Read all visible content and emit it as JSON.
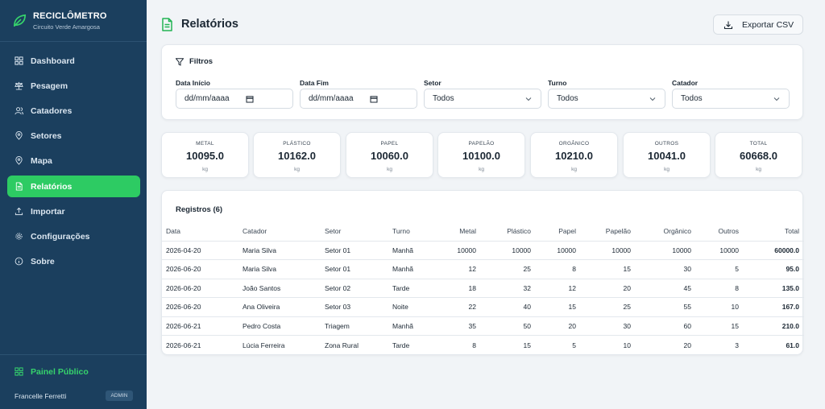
{
  "brand": {
    "name": "RECICLÔMETRO",
    "subtitle": "Circuito Verde Amargosa"
  },
  "sidebar": {
    "items": [
      {
        "label": "Dashboard",
        "icon": "grid-icon"
      },
      {
        "label": "Pesagem",
        "icon": "scale-icon"
      },
      {
        "label": "Catadores",
        "icon": "users-icon"
      },
      {
        "label": "Setores",
        "icon": "map-pin-icon"
      },
      {
        "label": "Mapa",
        "icon": "map-pin-icon"
      },
      {
        "label": "Relatórios",
        "icon": "file-text-icon",
        "active": true
      },
      {
        "label": "Importar",
        "icon": "upload-icon"
      },
      {
        "label": "Configurações",
        "icon": "gear-icon"
      },
      {
        "label": "Sobre",
        "icon": "info-icon"
      }
    ],
    "public_panel": "Painel Público",
    "user": {
      "name": "Francelle Ferretti",
      "role": "ADMIN"
    }
  },
  "page": {
    "title": "Relatórios",
    "export_label": "Exportar CSV"
  },
  "filters": {
    "title": "Filtros",
    "date_start": {
      "label": "Data Início",
      "placeholder": "dd/mm/aaaa"
    },
    "date_end": {
      "label": "Data Fim",
      "placeholder": "dd/mm/aaaa"
    },
    "sector": {
      "label": "Setor",
      "value": "Todos"
    },
    "shift": {
      "label": "Turno",
      "value": "Todos"
    },
    "collector": {
      "label": "Catador",
      "value": "Todos"
    }
  },
  "stats": [
    {
      "label": "METAL",
      "value": "10095.0",
      "unit": "kg"
    },
    {
      "label": "PLÁSTICO",
      "value": "10162.0",
      "unit": "kg"
    },
    {
      "label": "PAPEL",
      "value": "10060.0",
      "unit": "kg"
    },
    {
      "label": "PAPELÃO",
      "value": "10100.0",
      "unit": "kg"
    },
    {
      "label": "ORGÂNICO",
      "value": "10210.0",
      "unit": "kg"
    },
    {
      "label": "OUTROS",
      "value": "10041.0",
      "unit": "kg"
    },
    {
      "label": "TOTAL",
      "value": "60668.0",
      "unit": "kg"
    }
  ],
  "records": {
    "title": "Registros (6)",
    "columns": [
      "Data",
      "Catador",
      "Setor",
      "Turno",
      "Metal",
      "Plástico",
      "Papel",
      "Papelão",
      "Orgânico",
      "Outros",
      "Total"
    ],
    "rows": [
      [
        "2026-04-20",
        "Maria Silva",
        "Setor 01",
        "Manhã",
        "10000",
        "10000",
        "10000",
        "10000",
        "10000",
        "10000",
        "60000.0"
      ],
      [
        "2026-06-20",
        "Maria Silva",
        "Setor 01",
        "Manhã",
        "12",
        "25",
        "8",
        "15",
        "30",
        "5",
        "95.0"
      ],
      [
        "2026-06-20",
        "João Santos",
        "Setor 02",
        "Tarde",
        "18",
        "32",
        "12",
        "20",
        "45",
        "8",
        "135.0"
      ],
      [
        "2026-06-20",
        "Ana Oliveira",
        "Setor 03",
        "Noite",
        "22",
        "40",
        "15",
        "25",
        "55",
        "10",
        "167.0"
      ],
      [
        "2026-06-21",
        "Pedro Costa",
        "Triagem",
        "Manhã",
        "35",
        "50",
        "20",
        "30",
        "60",
        "15",
        "210.0"
      ],
      [
        "2026-06-21",
        "Lúcia Ferreira",
        "Zona Rural",
        "Tarde",
        "8",
        "15",
        "5",
        "10",
        "20",
        "3",
        "61.0"
      ]
    ]
  },
  "colors": {
    "sidebar": "#1b3f5e",
    "accent": "#2dcb63"
  }
}
